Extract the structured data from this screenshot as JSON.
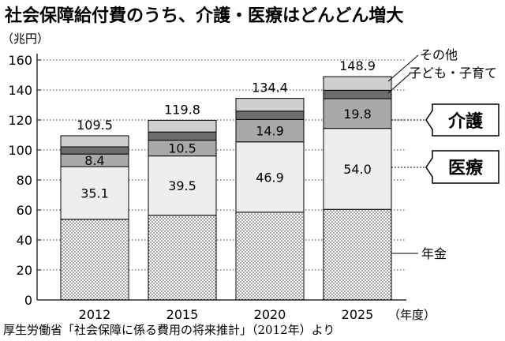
{
  "chart_data": {
    "type": "bar",
    "stacked": true,
    "title": "社会保障給付費のうち、介護・医療はどんどん増大",
    "ylabel": "（兆円）",
    "xlabel": "（年度）",
    "ylim": [
      0,
      160
    ],
    "yticks": [
      0,
      20,
      40,
      60,
      80,
      100,
      120,
      140,
      160
    ],
    "grid": true,
    "categories": [
      "2012",
      "2015",
      "2020",
      "2025"
    ],
    "totals": [
      "109.5",
      "119.8",
      "134.4",
      "148.9"
    ],
    "series": [
      {
        "name": "年金",
        "values": [
          53.8,
          56.5,
          58.5,
          60.4
        ],
        "color": "#ffffff",
        "pattern": "dots"
      },
      {
        "name": "医療",
        "values": [
          35.1,
          39.5,
          46.9,
          54.0
        ],
        "color": "#eeeeee",
        "show_labels": true
      },
      {
        "name": "介護",
        "values": [
          8.4,
          10.5,
          14.9,
          19.8
        ],
        "color": "#a9a9a9",
        "show_labels": true
      },
      {
        "name": "子ども・子育て",
        "values": [
          4.8,
          5.5,
          5.6,
          5.6
        ],
        "color": "#6c6c6c"
      },
      {
        "name": "その他",
        "values": [
          7.4,
          7.8,
          8.5,
          9.1
        ],
        "color": "#cfcfcf"
      }
    ],
    "legend": {
      "callouts_plain": [
        "その他",
        "子ども・子育て",
        "年金"
      ],
      "callouts_boxed": [
        "介護",
        "医療"
      ]
    }
  },
  "source": "厚生労働省「社会保障に係る費用の将来推計」（2012年）より"
}
